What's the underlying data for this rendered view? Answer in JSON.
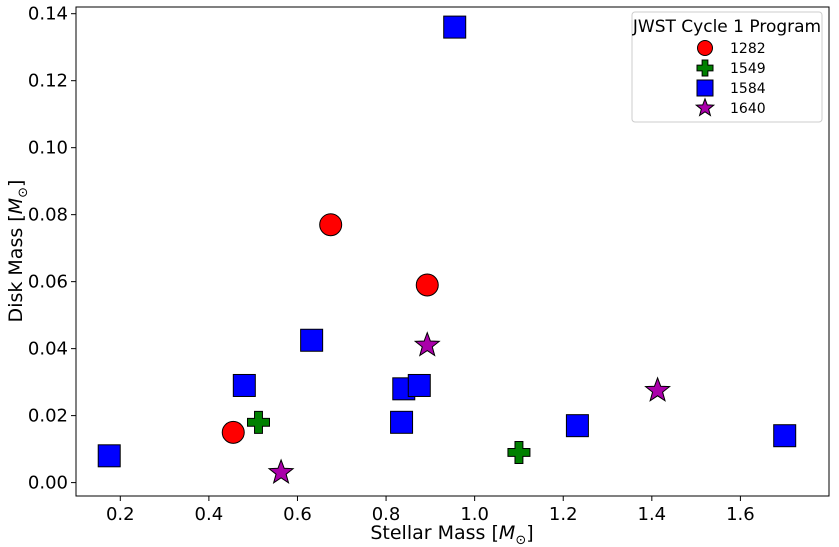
{
  "chart_data": {
    "type": "scatter",
    "xlabel_text": "Stellar Mass [",
    "xlabel_symbol": "M",
    "xlabel_sub": "⊙",
    "xlabel_close": "]",
    "ylabel_text": "Disk Mass [",
    "ylabel_symbol": "M",
    "ylabel_sub": "⊙",
    "ylabel_close": "]",
    "xlim": [
      0.1,
      1.8
    ],
    "ylim": [
      -0.004,
      0.142
    ],
    "xticks": [
      0.2,
      0.4,
      0.6,
      0.8,
      1.0,
      1.2,
      1.4,
      1.6
    ],
    "xtick_labels": [
      "0.2",
      "0.4",
      "0.6",
      "0.8",
      "1.0",
      "1.2",
      "1.4",
      "1.6"
    ],
    "yticks": [
      0.0,
      0.02,
      0.04,
      0.06,
      0.08,
      0.1,
      0.12,
      0.14
    ],
    "ytick_labels": [
      "0.00",
      "0.02",
      "0.04",
      "0.06",
      "0.08",
      "0.10",
      "0.12",
      "0.14"
    ],
    "grid": false,
    "legend": {
      "title": "JWST Cycle 1 Program",
      "placement": "top-right"
    },
    "series": [
      {
        "name": "1282",
        "marker": "circle",
        "color": "#ff0000",
        "points": [
          [
            0.455,
            0.015
          ],
          [
            0.675,
            0.077
          ],
          [
            0.893,
            0.059
          ]
        ]
      },
      {
        "name": "1549",
        "marker": "plus",
        "color": "#008000",
        "points": [
          [
            0.512,
            0.018
          ],
          [
            1.1,
            0.009
          ]
        ]
      },
      {
        "name": "1584",
        "marker": "square",
        "color": "#0000ff",
        "points": [
          [
            0.175,
            0.008
          ],
          [
            0.48,
            0.029
          ],
          [
            0.632,
            0.0425
          ],
          [
            0.835,
            0.018
          ],
          [
            0.84,
            0.028
          ],
          [
            0.875,
            0.029
          ],
          [
            0.955,
            0.136
          ],
          [
            1.232,
            0.017
          ],
          [
            1.7,
            0.014
          ]
        ]
      },
      {
        "name": "1640",
        "marker": "star",
        "color": "#aa00aa",
        "points": [
          [
            0.563,
            0.003
          ],
          [
            0.893,
            0.041
          ],
          [
            1.413,
            0.0275
          ]
        ]
      }
    ]
  }
}
